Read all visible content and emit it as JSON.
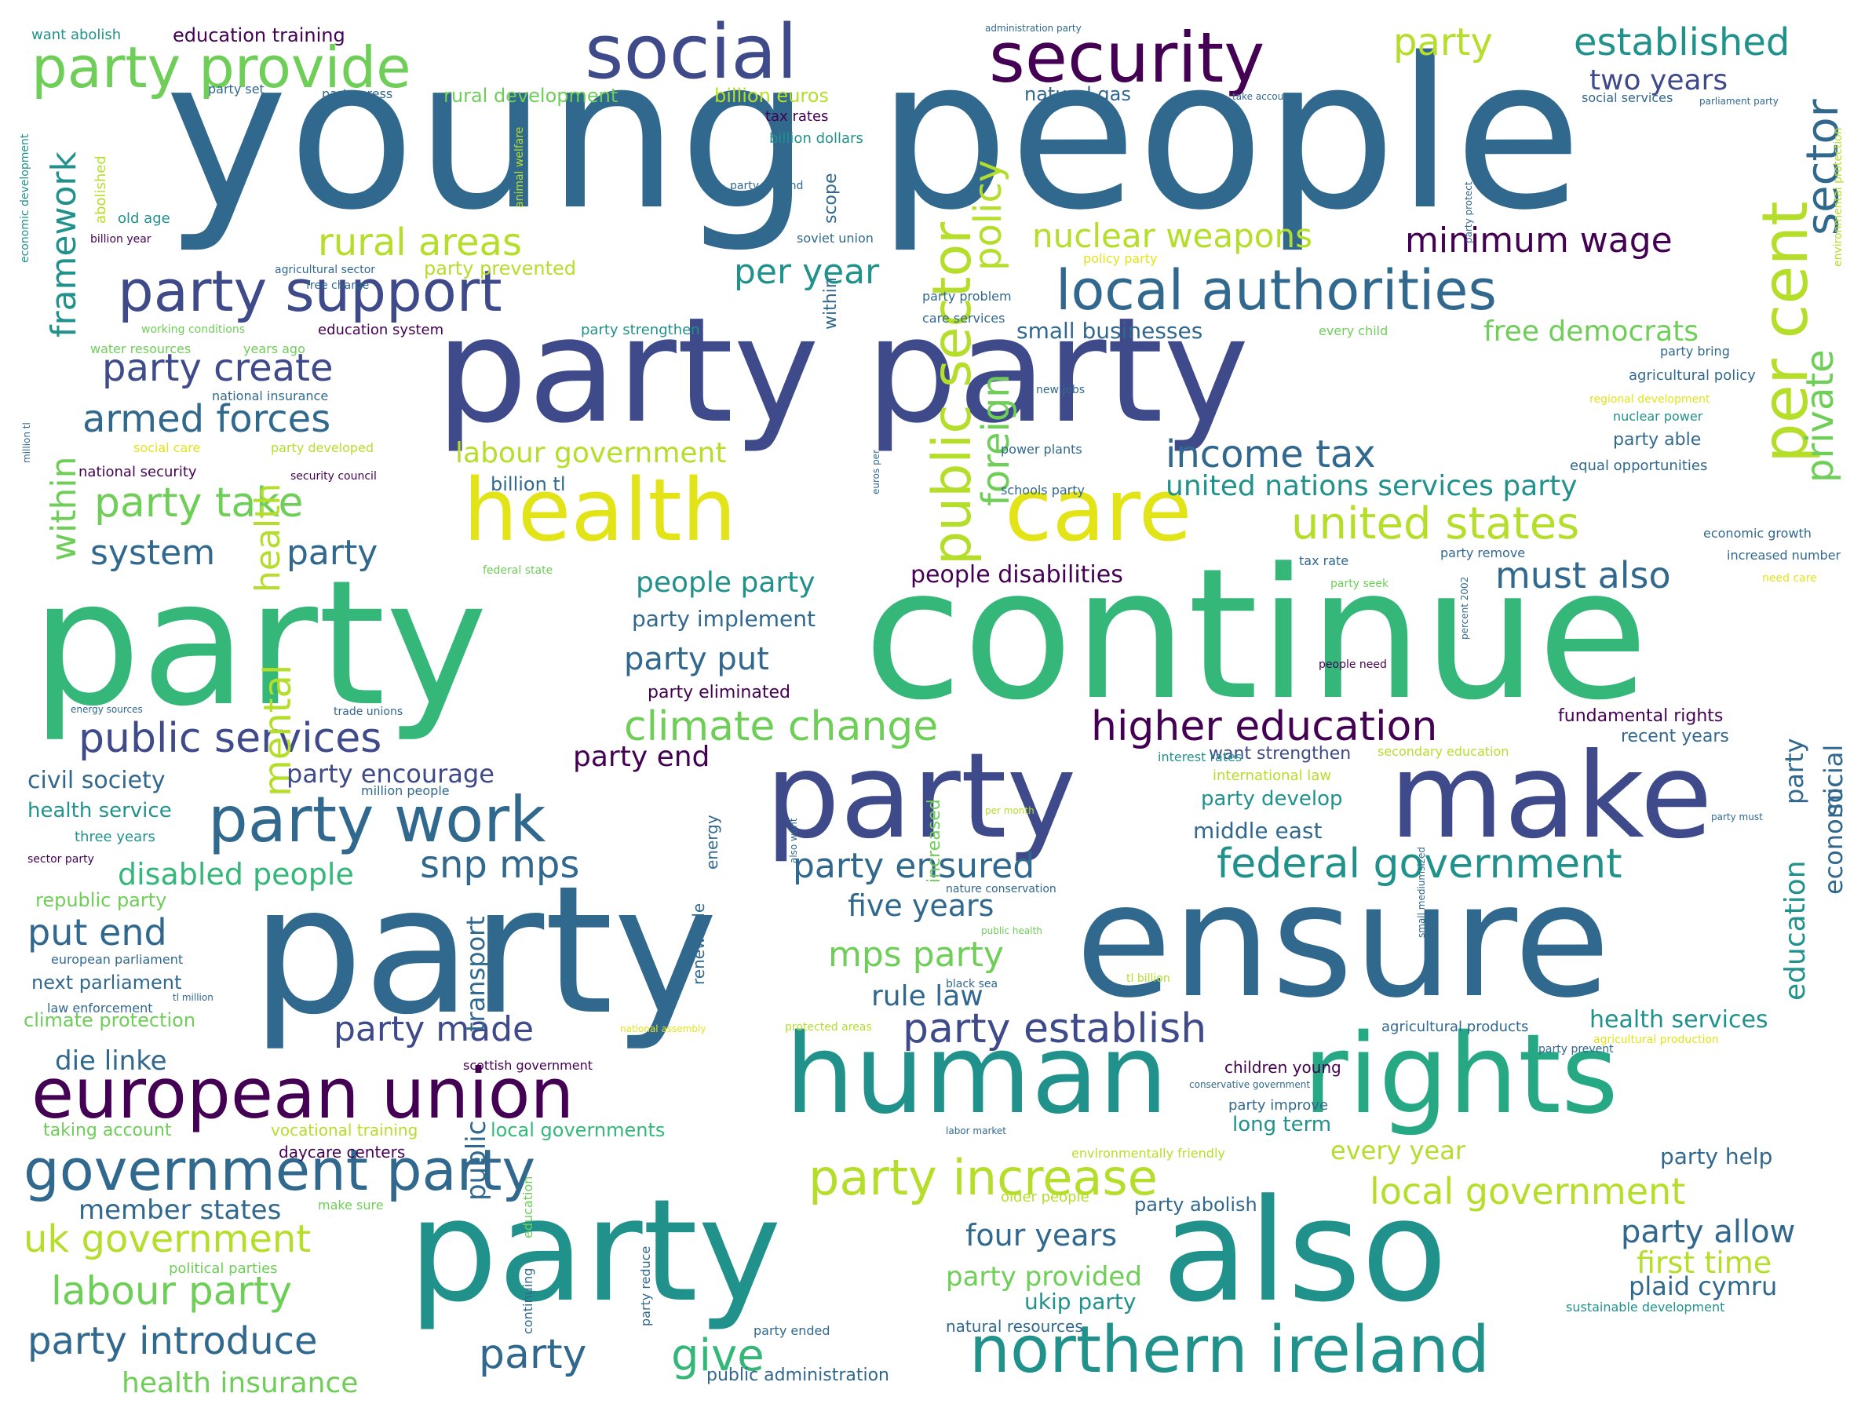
{
  "palette": {
    "dark_purple": "#440154",
    "indigo": "#3b528b",
    "blue": "#31688e",
    "teal": "#21918c",
    "green": "#35b779",
    "lime": "#6ece58",
    "yellow_green": "#b5de2b",
    "yellow": "#e3e418"
  },
  "words": [
    {
      "text": "young people",
      "color": "#31688e"
    },
    {
      "text": "party party",
      "color": "#3e4a89"
    },
    {
      "text": "party",
      "color": "#35b779"
    },
    {
      "text": "continue",
      "color": "#35b779"
    },
    {
      "text": "party",
      "color": "#3e4a89"
    },
    {
      "text": "make",
      "color": "#3e4a89"
    },
    {
      "text": "party",
      "color": "#31688e"
    },
    {
      "text": "ensure",
      "color": "#31688e"
    },
    {
      "text": "human",
      "color": "#21918c"
    },
    {
      "text": "rights",
      "color": "#26a884"
    },
    {
      "text": "party",
      "color": "#21918c"
    },
    {
      "text": "also",
      "color": "#21918c"
    },
    {
      "text": "health",
      "color": "#e3e418"
    },
    {
      "text": "care",
      "color": "#e3e418"
    },
    {
      "text": "social",
      "color": "#3e4a89"
    },
    {
      "text": "security",
      "color": "#440154"
    },
    {
      "text": "party provide",
      "color": "#6ece58"
    },
    {
      "text": "party support",
      "color": "#3e4a89"
    },
    {
      "text": "local authorities",
      "color": "#31688e"
    },
    {
      "text": "european union",
      "color": "#440154"
    },
    {
      "text": "government party",
      "color": "#31688e"
    },
    {
      "text": "northern ireland",
      "color": "#21918c"
    },
    {
      "text": "party work",
      "color": "#31688e"
    },
    {
      "text": "party increase",
      "color": "#b5de2b"
    },
    {
      "text": "party",
      "color": "#b5de2b"
    },
    {
      "text": "established",
      "color": "#21918c"
    },
    {
      "text": "two years",
      "color": "#3e4a89"
    },
    {
      "text": "rural areas",
      "color": "#b5de2b"
    },
    {
      "text": "public sector",
      "color": "#b5de2b"
    },
    {
      "text": "policy",
      "color": "#b5de2b"
    },
    {
      "text": "per cent",
      "color": "#b5de2b"
    },
    {
      "text": "sector",
      "color": "#31688e"
    },
    {
      "text": "private",
      "color": "#6ece58"
    },
    {
      "text": "nuclear weapons",
      "color": "#b5de2b"
    },
    {
      "text": "minimum wage",
      "color": "#440154"
    },
    {
      "text": "per year",
      "color": "#21918c"
    },
    {
      "text": "foreign",
      "color": "#6ece58"
    },
    {
      "text": "framework",
      "color": "#21918c"
    },
    {
      "text": "within",
      "color": "#6ece58"
    },
    {
      "text": "party create",
      "color": "#3e4a89"
    },
    {
      "text": "armed forces",
      "color": "#31688e"
    },
    {
      "text": "party take",
      "color": "#6ece58"
    },
    {
      "text": "system",
      "color": "#31688e"
    },
    {
      "text": "party",
      "color": "#31688e"
    },
    {
      "text": "health",
      "color": "#b5de2b"
    },
    {
      "text": "income tax",
      "color": "#31688e"
    },
    {
      "text": "united nations services party",
      "color": "#21918c"
    },
    {
      "text": "united states",
      "color": "#b5de2b"
    },
    {
      "text": "labour government",
      "color": "#b5de2b"
    },
    {
      "text": "free democrats",
      "color": "#6ece58"
    },
    {
      "text": "must also",
      "color": "#31688e"
    },
    {
      "text": "people party",
      "color": "#21918c"
    },
    {
      "text": "people disabilities",
      "color": "#440154"
    },
    {
      "text": "party implement",
      "color": "#31688e"
    },
    {
      "text": "party put",
      "color": "#31688e"
    },
    {
      "text": "climate change",
      "color": "#6ece58"
    },
    {
      "text": "higher education",
      "color": "#440154"
    },
    {
      "text": "public services",
      "color": "#3e4a89"
    },
    {
      "text": "mental",
      "color": "#b5de2b"
    },
    {
      "text": "party end",
      "color": "#440154"
    },
    {
      "text": "party encourage",
      "color": "#3e4a89"
    },
    {
      "text": "civil society",
      "color": "#31688e"
    },
    {
      "text": "health service",
      "color": "#21918c"
    },
    {
      "text": "disabled people",
      "color": "#35b779"
    },
    {
      "text": "snp mps",
      "color": "#31688e"
    },
    {
      "text": "party ensured",
      "color": "#31688e"
    },
    {
      "text": "federal government",
      "color": "#21918c"
    },
    {
      "text": "put end",
      "color": "#31688e"
    },
    {
      "text": "five years",
      "color": "#31688e"
    },
    {
      "text": "mps party",
      "color": "#6ece58"
    },
    {
      "text": "rule law",
      "color": "#31688e"
    },
    {
      "text": "party made",
      "color": "#3e4a89"
    },
    {
      "text": "party establish",
      "color": "#3e4a89"
    },
    {
      "text": "die linke",
      "color": "#31688e"
    },
    {
      "text": "uk government",
      "color": "#b5de2b"
    },
    {
      "text": "labour party",
      "color": "#6ece58"
    },
    {
      "text": "party introduce",
      "color": "#31688e"
    },
    {
      "text": "health insurance",
      "color": "#6ece58"
    },
    {
      "text": "party",
      "color": "#31688e"
    },
    {
      "text": "give",
      "color": "#35b779"
    },
    {
      "text": "four years",
      "color": "#31688e"
    },
    {
      "text": "party provided",
      "color": "#6ece58"
    },
    {
      "text": "ukip party",
      "color": "#21918c"
    },
    {
      "text": "local government",
      "color": "#b5de2b"
    },
    {
      "text": "party allow",
      "color": "#31688e"
    },
    {
      "text": "first time",
      "color": "#b5de2b"
    },
    {
      "text": "plaid cymru",
      "color": "#31688e"
    },
    {
      "text": "every year",
      "color": "#b5de2b"
    },
    {
      "text": "party help",
      "color": "#31688e"
    },
    {
      "text": "member states",
      "color": "#31688e"
    },
    {
      "text": "health services",
      "color": "#21918c"
    },
    {
      "text": "middle east",
      "color": "#31688e"
    },
    {
      "text": "party develop",
      "color": "#21918c"
    },
    {
      "text": "education",
      "color": "#21918c"
    },
    {
      "text": "economic",
      "color": "#31688e"
    },
    {
      "text": "social",
      "color": "#31688e"
    },
    {
      "text": "party",
      "color": "#31688e"
    },
    {
      "text": "transport",
      "color": "#31688e"
    },
    {
      "text": "public",
      "color": "#31688e"
    },
    {
      "text": "education training",
      "color": "#440154"
    },
    {
      "text": "rural development",
      "color": "#6ece58"
    },
    {
      "text": "billion euros",
      "color": "#b5de2b"
    },
    {
      "text": "natural gas",
      "color": "#31688e"
    },
    {
      "text": "small businesses",
      "color": "#31688e"
    },
    {
      "text": "party prevented",
      "color": "#b5de2b"
    },
    {
      "text": "billion tl",
      "color": "#31688e"
    },
    {
      "text": "long term",
      "color": "#21918c"
    },
    {
      "text": "local governments",
      "color": "#35b779"
    },
    {
      "text": "natural resources",
      "color": "#31688e"
    },
    {
      "text": "public administration",
      "color": "#31688e"
    },
    {
      "text": "party eliminated",
      "color": "#440154"
    },
    {
      "text": "want strengthen",
      "color": "#3e4a89"
    },
    {
      "text": "fundamental rights",
      "color": "#440154"
    },
    {
      "text": "recent years",
      "color": "#31688e"
    },
    {
      "text": "children young",
      "color": "#440154"
    },
    {
      "text": "party improve",
      "color": "#31688e"
    },
    {
      "text": "agricultural products",
      "color": "#31688e"
    },
    {
      "text": "party able",
      "color": "#31688e"
    },
    {
      "text": "agricultural policy",
      "color": "#31688e"
    },
    {
      "text": "nuclear power",
      "color": "#21918c"
    },
    {
      "text": "taking account",
      "color": "#6ece58"
    },
    {
      "text": "next parliament",
      "color": "#31688e"
    },
    {
      "text": "climate protection",
      "color": "#6ece58"
    },
    {
      "text": "republic party",
      "color": "#6ece58"
    },
    {
      "text": "three years",
      "color": "#21918c"
    },
    {
      "text": "old age",
      "color": "#21918c"
    },
    {
      "text": "abolished",
      "color": "#b5de2b"
    },
    {
      "text": "party set",
      "color": "#31688e"
    },
    {
      "text": "party press",
      "color": "#31688e"
    },
    {
      "text": "tax rates",
      "color": "#440154"
    },
    {
      "text": "billion dollars",
      "color": "#21918c"
    },
    {
      "text": "soviet union",
      "color": "#31688e"
    },
    {
      "text": "scope",
      "color": "#31688e"
    },
    {
      "text": "within",
      "color": "#31688e"
    },
    {
      "text": "party bring",
      "color": "#31688e"
    },
    {
      "text": "economic growth",
      "color": "#31688e"
    },
    {
      "text": "increased number",
      "color": "#31688e"
    },
    {
      "text": "party remove",
      "color": "#31688e"
    },
    {
      "text": "tax rate",
      "color": "#31688e"
    },
    {
      "text": "national security",
      "color": "#440154"
    },
    {
      "text": "energy",
      "color": "#31688e"
    },
    {
      "text": "renewable",
      "color": "#31688e"
    },
    {
      "text": "increased",
      "color": "#6ece58"
    },
    {
      "text": "vocational training",
      "color": "#b5de2b"
    },
    {
      "text": "daycare centers",
      "color": "#440154"
    },
    {
      "text": "scottish government",
      "color": "#440154"
    },
    {
      "text": "sustainable development",
      "color": "#21918c"
    },
    {
      "text": "education",
      "color": "#6ece58"
    },
    {
      "text": "political parties",
      "color": "#6ece58"
    },
    {
      "text": "make sure",
      "color": "#6ece58"
    },
    {
      "text": "older people",
      "color": "#b5de2b"
    },
    {
      "text": "party abolish",
      "color": "#31688e"
    },
    {
      "text": "environmentally friendly",
      "color": "#b5de2b"
    },
    {
      "text": "party ended",
      "color": "#31688e"
    },
    {
      "text": "continuing",
      "color": "#31688e"
    },
    {
      "text": "party reduce",
      "color": "#31688e"
    },
    {
      "text": "international law",
      "color": "#b5de2b"
    },
    {
      "text": "secondary education",
      "color": "#b5de2b"
    },
    {
      "text": "interest rates",
      "color": "#21918c"
    },
    {
      "text": "social services",
      "color": "#31688e"
    },
    {
      "text": "power plants",
      "color": "#31688e"
    },
    {
      "text": "schools party",
      "color": "#31688e"
    },
    {
      "text": "equal opportunities",
      "color": "#31688e"
    },
    {
      "text": "regional development",
      "color": "#e3e418"
    },
    {
      "text": "people need",
      "color": "#440154"
    },
    {
      "text": "law enforcement",
      "color": "#31688e"
    },
    {
      "text": "european parliament",
      "color": "#31688e"
    },
    {
      "text": "million people",
      "color": "#31688e"
    },
    {
      "text": "trade unions",
      "color": "#31688e"
    },
    {
      "text": "national insurance",
      "color": "#31688e"
    },
    {
      "text": "working conditions",
      "color": "#6ece58"
    },
    {
      "text": "water resources",
      "color": "#6ece58"
    },
    {
      "text": "years ago",
      "color": "#6ece58"
    },
    {
      "text": "labor market",
      "color": "#31688e"
    },
    {
      "text": "protected areas",
      "color": "#b5de2b"
    },
    {
      "text": "national assembly",
      "color": "#e3e418"
    },
    {
      "text": "nature conservation",
      "color": "#31688e"
    },
    {
      "text": "agricultural production",
      "color": "#e3e418"
    },
    {
      "text": "party prevent",
      "color": "#31688e"
    },
    {
      "text": "conservative government",
      "color": "#31688e"
    },
    {
      "text": "want abolish",
      "color": "#21918c"
    },
    {
      "text": "administration party",
      "color": "#31688e"
    },
    {
      "text": "parliament party",
      "color": "#31688e"
    },
    {
      "text": "environmental protection",
      "color": "#b5de2b"
    },
    {
      "text": "policy party",
      "color": "#e3e418"
    },
    {
      "text": "free charge",
      "color": "#31688e"
    },
    {
      "text": "agricultural sector",
      "color": "#31688e"
    },
    {
      "text": "education system",
      "color": "#440154"
    },
    {
      "text": "party strengthen",
      "color": "#21918c"
    },
    {
      "text": "every child",
      "color": "#6ece58"
    },
    {
      "text": "party problem",
      "color": "#31688e"
    },
    {
      "text": "care services",
      "color": "#31688e"
    },
    {
      "text": "new jobs",
      "color": "#31688e"
    },
    {
      "text": "social care",
      "color": "#e3e418"
    },
    {
      "text": "party developed",
      "color": "#b5de2b"
    },
    {
      "text": "security council",
      "color": "#440154"
    },
    {
      "text": "federal state",
      "color": "#6ece58"
    },
    {
      "text": "party seek",
      "color": "#6ece58"
    },
    {
      "text": "need care",
      "color": "#e3e418"
    },
    {
      "text": "per month",
      "color": "#b5de2b"
    },
    {
      "text": "public health",
      "color": "#6ece58"
    },
    {
      "text": "black sea",
      "color": "#31688e"
    },
    {
      "text": "tl billion",
      "color": "#b5de2b"
    },
    {
      "text": "tl million",
      "color": "#31688e"
    },
    {
      "text": "sector party",
      "color": "#440154"
    },
    {
      "text": "energy sources",
      "color": "#31688e"
    },
    {
      "text": "party must",
      "color": "#31688e"
    },
    {
      "text": "economic development",
      "color": "#21918c"
    },
    {
      "text": "billion year",
      "color": "#440154"
    },
    {
      "text": "take account",
      "color": "#31688e"
    },
    {
      "text": "party expand",
      "color": "#31688e"
    },
    {
      "text": "animal welfare",
      "color": "#b5de2b"
    },
    {
      "text": "million tl",
      "color": "#31688e"
    },
    {
      "text": "party protect",
      "color": "#31688e"
    },
    {
      "text": "percent 2002",
      "color": "#31688e"
    },
    {
      "text": "small mediumsized",
      "color": "#31688e"
    },
    {
      "text": "also want",
      "color": "#31688e"
    },
    {
      "text": "euros per",
      "color": "#31688e"
    }
  ]
}
